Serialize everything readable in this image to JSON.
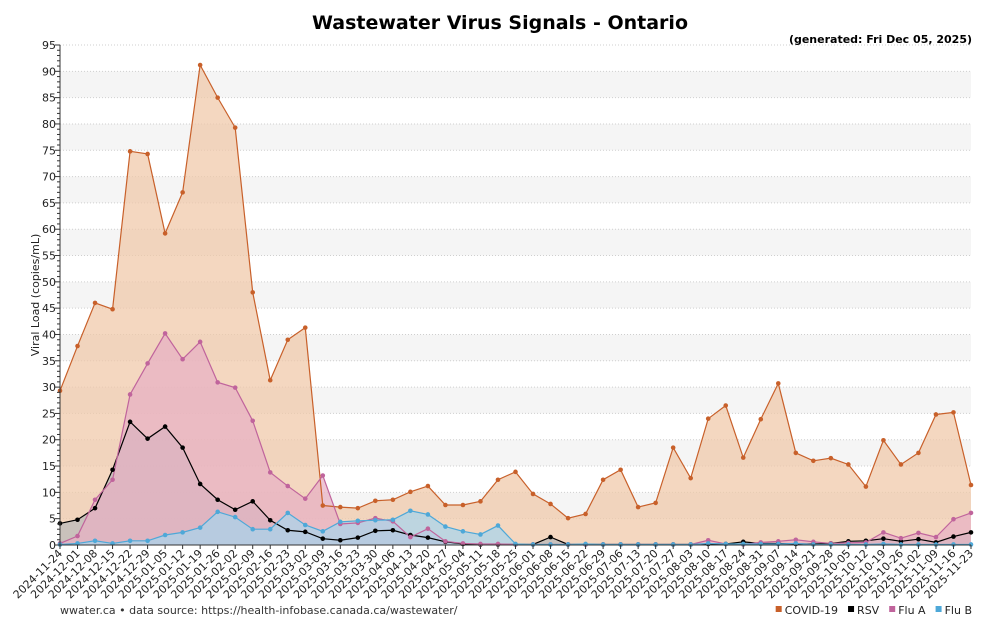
{
  "chart_data": {
    "type": "area",
    "title": "Wastewater Virus Signals - Ontario",
    "subtitle": "(generated: Fri Dec 05, 2025)",
    "ylabel": "Viral Load (copies/mL)",
    "xlabel": "",
    "ylim": [
      0,
      95
    ],
    "yticks": [
      0,
      5,
      10,
      15,
      20,
      25,
      30,
      35,
      40,
      45,
      50,
      55,
      60,
      65,
      70,
      75,
      80,
      85,
      90,
      95
    ],
    "grid": true,
    "legend_position": "bottom-right",
    "footer": "wwater.ca • data source: https://health-infobase.canada.ca/wastewater/",
    "x": [
      "2024-11-24",
      "2024-12-01",
      "2024-12-08",
      "2024-12-15",
      "2024-12-22",
      "2024-12-29",
      "2025-01-05",
      "2025-01-12",
      "2025-01-19",
      "2025-01-26",
      "2025-02-02",
      "2025-02-09",
      "2025-02-16",
      "2025-02-23",
      "2025-03-02",
      "2025-03-09",
      "2025-03-16",
      "2025-03-23",
      "2025-03-30",
      "2025-04-06",
      "2025-04-13",
      "2025-04-20",
      "2025-04-27",
      "2025-05-04",
      "2025-05-11",
      "2025-05-18",
      "2025-05-25",
      "2025-06-01",
      "2025-06-08",
      "2025-06-15",
      "2025-06-22",
      "2025-06-29",
      "2025-07-06",
      "2025-07-13",
      "2025-07-20",
      "2025-07-27",
      "2025-08-03",
      "2025-08-10",
      "2025-08-17",
      "2025-08-24",
      "2025-08-31",
      "2025-09-07",
      "2025-09-14",
      "2025-09-21",
      "2025-09-28",
      "2025-10-05",
      "2025-10-12",
      "2025-10-19",
      "2025-10-26",
      "2025-11-02",
      "2025-11-09",
      "2025-11-16",
      "2025-11-23"
    ],
    "series": [
      {
        "name": "COVID-19",
        "line_color": "#c8602a",
        "fill_color": "#f0c8a8",
        "values": [
          29.3,
          37.8,
          46.0,
          44.8,
          74.8,
          74.3,
          59.2,
          67.0,
          91.2,
          85.0,
          79.3,
          48.0,
          31.3,
          39.0,
          41.3,
          7.5,
          7.2,
          7.0,
          8.4,
          8.6,
          10.1,
          11.2,
          7.6,
          7.6,
          8.3,
          12.4,
          13.9,
          9.7,
          7.8,
          5.1,
          5.9,
          12.4,
          14.3,
          7.2,
          8.0,
          18.5,
          12.7,
          24.0,
          26.5,
          16.6,
          23.9,
          30.7,
          17.5,
          16.0,
          16.5,
          15.3,
          11.1,
          19.9,
          15.3,
          17.5,
          24.8,
          25.2,
          11.4
        ]
      },
      {
        "name": "RSV",
        "line_color": "#000000",
        "fill_color": "#b8b8b8",
        "values": [
          4.1,
          4.8,
          7.0,
          14.3,
          23.4,
          20.2,
          22.5,
          18.5,
          11.6,
          8.6,
          6.7,
          8.3,
          4.7,
          2.8,
          2.5,
          1.2,
          0.9,
          1.4,
          2.7,
          2.8,
          1.9,
          1.4,
          0.6,
          0.2,
          0.1,
          0.1,
          0.1,
          0.1,
          1.5,
          0.1,
          0.1,
          0.1,
          0.1,
          0.1,
          0.1,
          0.1,
          0.1,
          0.2,
          0.2,
          0.6,
          0.3,
          0.3,
          0.2,
          0.2,
          0.3,
          0.7,
          0.8,
          1.2,
          0.7,
          1.1,
          0.5,
          1.6,
          2.4
        ]
      },
      {
        "name": "Flu A",
        "line_color": "#c0649c",
        "fill_color": "#e8b0c4",
        "values": [
          0.3,
          1.7,
          8.6,
          12.4,
          28.6,
          34.5,
          40.2,
          35.3,
          38.6,
          30.9,
          29.9,
          23.6,
          13.8,
          11.2,
          8.8,
          13.2,
          4.0,
          4.2,
          5.1,
          4.5,
          1.5,
          3.1,
          0.7,
          0.3,
          0.2,
          0.2,
          0.1,
          0.1,
          0.1,
          0.1,
          0.1,
          0.1,
          0.1,
          0.1,
          0.1,
          0.1,
          0.1,
          0.9,
          0.2,
          0.1,
          0.5,
          0.7,
          1.0,
          0.6,
          0.3,
          0.4,
          0.5,
          2.4,
          1.3,
          2.3,
          1.5,
          4.9,
          6.1
        ]
      },
      {
        "name": "Flu B",
        "line_color": "#4ea8d8",
        "fill_color": "#a8d4ec",
        "values": [
          0.1,
          0.3,
          0.8,
          0.3,
          0.8,
          0.8,
          1.9,
          2.4,
          3.3,
          6.3,
          5.3,
          3.0,
          3.0,
          6.1,
          3.8,
          2.6,
          4.4,
          4.6,
          4.7,
          4.8,
          6.5,
          5.8,
          3.5,
          2.6,
          2.0,
          3.7,
          0.2,
          0.1,
          0.1,
          0.1,
          0.2,
          0.1,
          0.1,
          0.1,
          0.1,
          0.1,
          0.1,
          0.3,
          0.2,
          0.2,
          0.2,
          0.2,
          0.3,
          0.1,
          0.1,
          0.1,
          0.1,
          0.2,
          0.1,
          0.1,
          0.1,
          0.1,
          0.1
        ]
      }
    ]
  }
}
